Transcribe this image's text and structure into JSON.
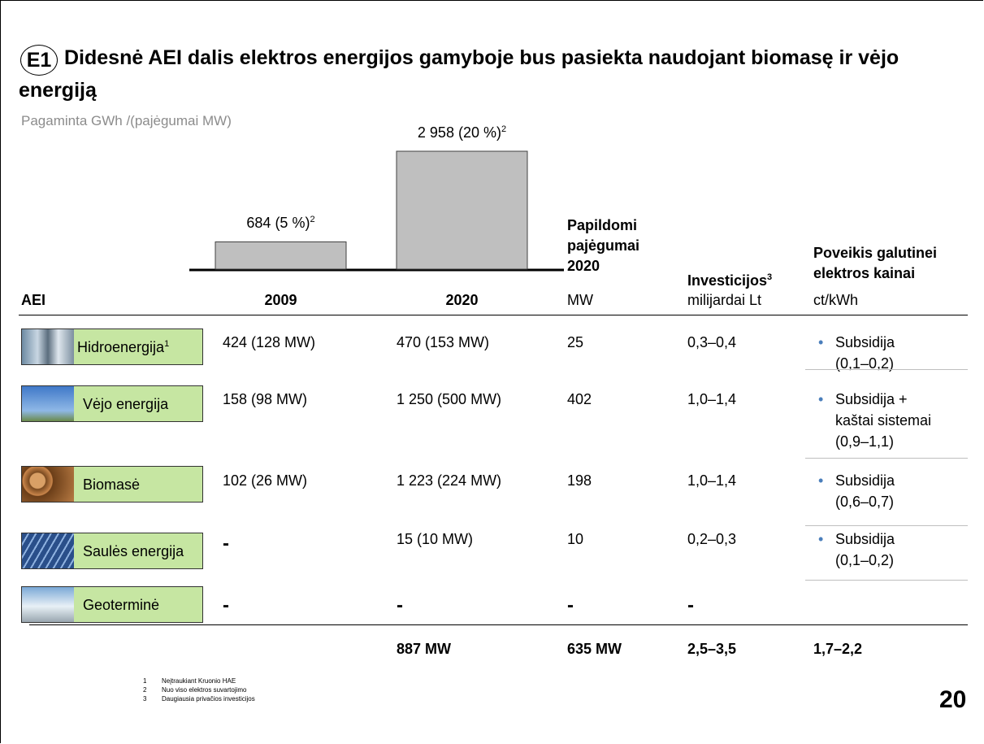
{
  "title": {
    "badge": "E1",
    "text": "Didesnė AEI dalis elektros energijos gamyboje bus pasiekta naudojant biomasę ir vėjo energiją"
  },
  "subtitle": "Pagaminta GWh /(pajėgumai MW)",
  "chart": {
    "bars": [
      {
        "category": "2009",
        "value": 684,
        "label": "684 (5 %)",
        "note": "2"
      },
      {
        "category": "2020",
        "value": 2958,
        "label": "2 958 (20 %)",
        "note": "2"
      }
    ]
  },
  "headers": {
    "source": "AEI",
    "added": {
      "lines": [
        "Papildomi",
        "pajėgumai",
        "2020"
      ],
      "unit": "MW"
    },
    "invest": {
      "text": "Investicijos",
      "note": "3",
      "unit": "milijardai Lt"
    },
    "impact": {
      "lines": [
        "Poveikis galutinei",
        "elektros kainai"
      ],
      "unit": "ct/kWh"
    }
  },
  "rows": [
    {
      "name": "Hidroenergija",
      "note": "1",
      "y2009": "424 (128 MW)",
      "y2020": "470 (153 MW)",
      "added": "25",
      "invest": "0,3–0,4",
      "impact": [
        "Subsidija",
        "(0,1–0,2)"
      ]
    },
    {
      "name": "Vėjo energija",
      "y2009": "158 (98 MW)",
      "y2020": "1 250 (500 MW)",
      "added": "402",
      "invest": "1,0–1,4",
      "impact": [
        "Subsidija +",
        "kaštai sistemai",
        "(0,9–1,1)"
      ]
    },
    {
      "name": "Biomasė",
      "y2009": "102 (26 MW)",
      "y2020": "1 223 (224 MW)",
      "added": "198",
      "invest": "1,0–1,4",
      "impact": [
        "Subsidija",
        "(0,6–0,7)"
      ]
    },
    {
      "name": "Saulės energija",
      "y2009": "-",
      "y2020": "15 (10 MW)",
      "added": "10",
      "invest": "0,2–0,3",
      "impact": [
        "Subsidija",
        "(0,1–0,2)"
      ]
    },
    {
      "name": "Geoterminė",
      "y2009": "-",
      "y2020": "-",
      "added": "-",
      "invest": "-",
      "impact": []
    }
  ],
  "totals": {
    "y2020": "887 MW",
    "added": "635 MW",
    "invest": "2,5–3,5",
    "impact": "1,7–2,2"
  },
  "footnotes": [
    {
      "n": "1",
      "text": "Neįtraukiant Kruonio HAE"
    },
    {
      "n": "2",
      "text": "Nuo viso elektros suvartojimo"
    },
    {
      "n": "3",
      "text": "Daugiausia privačios investicijos"
    }
  ],
  "page_number": "20"
}
